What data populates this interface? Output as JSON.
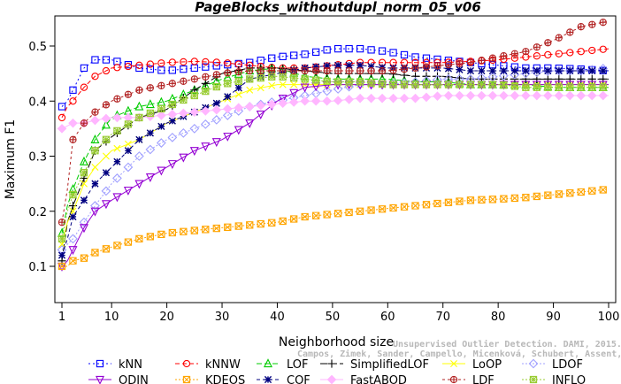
{
  "chart_data": {
    "type": "line",
    "title": "PageBlocks_withoutdupl_norm_05_v06",
    "xlabel": "Neighborhood size",
    "ylabel": "Maximum F1",
    "xlim": [
      0,
      100
    ],
    "ylim": [
      0.08,
      0.55
    ],
    "xticks": [
      1,
      10,
      20,
      30,
      40,
      50,
      60,
      70,
      80,
      90,
      100
    ],
    "yticks": [
      0.1,
      0.2,
      0.3,
      0.4,
      0.5
    ],
    "yticklabels": [
      "0.1",
      "0.2",
      "0.3",
      "0.4",
      "0.5"
    ],
    "grid": false,
    "legend_position": "bottom",
    "watermark": [
      "Campos, Zimek, Sander, Campello, Micenková, Schubert, Assent, Houle",
      "Unsupervised Outlier Detection. DAMI, 2015."
    ],
    "series": [
      {
        "name": "kNN",
        "color": "#0000ff",
        "marker": "square",
        "dash": "2,3",
        "points": [
          [
            1,
            0.39
          ],
          [
            2,
            0.4
          ],
          [
            3,
            0.42
          ],
          [
            5,
            0.46
          ],
          [
            7,
            0.475
          ],
          [
            10,
            0.475
          ],
          [
            15,
            0.46
          ],
          [
            20,
            0.455
          ],
          [
            25,
            0.46
          ],
          [
            30,
            0.465
          ],
          [
            35,
            0.47
          ],
          [
            40,
            0.48
          ],
          [
            45,
            0.485
          ],
          [
            50,
            0.495
          ],
          [
            55,
            0.495
          ],
          [
            60,
            0.49
          ],
          [
            65,
            0.48
          ],
          [
            70,
            0.475
          ],
          [
            75,
            0.47
          ],
          [
            80,
            0.465
          ],
          [
            85,
            0.46
          ],
          [
            90,
            0.46
          ],
          [
            95,
            0.458
          ],
          [
            100,
            0.455
          ]
        ]
      },
      {
        "name": "kNNW",
        "color": "#ff0000",
        "marker": "circle",
        "dash": "5,3",
        "points": [
          [
            1,
            0.37
          ],
          [
            2,
            0.39
          ],
          [
            3,
            0.4
          ],
          [
            5,
            0.425
          ],
          [
            7,
            0.445
          ],
          [
            10,
            0.46
          ],
          [
            15,
            0.465
          ],
          [
            20,
            0.47
          ],
          [
            25,
            0.472
          ],
          [
            30,
            0.47
          ],
          [
            35,
            0.465
          ],
          [
            40,
            0.46
          ],
          [
            45,
            0.46
          ],
          [
            50,
            0.465
          ],
          [
            55,
            0.47
          ],
          [
            60,
            0.47
          ],
          [
            65,
            0.47
          ],
          [
            70,
            0.47
          ],
          [
            75,
            0.472
          ],
          [
            80,
            0.475
          ],
          [
            85,
            0.48
          ],
          [
            90,
            0.485
          ],
          [
            95,
            0.49
          ],
          [
            100,
            0.495
          ]
        ]
      },
      {
        "name": "LOF",
        "color": "#00cc00",
        "marker": "triangle-up",
        "dash": "6,3",
        "points": [
          [
            1,
            0.16
          ],
          [
            2,
            0.21
          ],
          [
            3,
            0.24
          ],
          [
            5,
            0.29
          ],
          [
            7,
            0.33
          ],
          [
            10,
            0.37
          ],
          [
            15,
            0.39
          ],
          [
            20,
            0.4
          ],
          [
            25,
            0.42
          ],
          [
            30,
            0.44
          ],
          [
            35,
            0.455
          ],
          [
            40,
            0.46
          ],
          [
            45,
            0.445
          ],
          [
            50,
            0.44
          ],
          [
            55,
            0.44
          ],
          [
            60,
            0.44
          ],
          [
            65,
            0.435
          ],
          [
            70,
            0.435
          ],
          [
            75,
            0.43
          ],
          [
            80,
            0.43
          ],
          [
            85,
            0.43
          ],
          [
            90,
            0.425
          ],
          [
            95,
            0.425
          ],
          [
            100,
            0.425
          ]
        ]
      },
      {
        "name": "SimplifiedLOF",
        "color": "#000000",
        "marker": "plus",
        "dash": "8,3",
        "points": [
          [
            1,
            0.11
          ],
          [
            2,
            0.18
          ],
          [
            3,
            0.21
          ],
          [
            5,
            0.26
          ],
          [
            7,
            0.31
          ],
          [
            10,
            0.335
          ],
          [
            15,
            0.37
          ],
          [
            20,
            0.385
          ],
          [
            25,
            0.42
          ],
          [
            30,
            0.45
          ],
          [
            35,
            0.46
          ],
          [
            40,
            0.46
          ],
          [
            45,
            0.455
          ],
          [
            50,
            0.45
          ],
          [
            55,
            0.45
          ],
          [
            60,
            0.45
          ],
          [
            65,
            0.445
          ],
          [
            70,
            0.445
          ],
          [
            75,
            0.44
          ],
          [
            80,
            0.44
          ],
          [
            85,
            0.44
          ],
          [
            90,
            0.44
          ],
          [
            95,
            0.44
          ],
          [
            100,
            0.44
          ]
        ]
      },
      {
        "name": "LoOP",
        "color": "#ffff00",
        "marker": "cross",
        "dash": "",
        "points": [
          [
            1,
            0.14
          ],
          [
            2,
            0.18
          ],
          [
            3,
            0.2
          ],
          [
            5,
            0.25
          ],
          [
            7,
            0.28
          ],
          [
            10,
            0.31
          ],
          [
            15,
            0.33
          ],
          [
            20,
            0.36
          ],
          [
            25,
            0.38
          ],
          [
            30,
            0.4
          ],
          [
            35,
            0.42
          ],
          [
            40,
            0.43
          ],
          [
            45,
            0.43
          ],
          [
            50,
            0.43
          ],
          [
            55,
            0.43
          ],
          [
            60,
            0.43
          ],
          [
            65,
            0.43
          ],
          [
            70,
            0.43
          ],
          [
            75,
            0.43
          ],
          [
            80,
            0.43
          ],
          [
            85,
            0.43
          ],
          [
            90,
            0.43
          ],
          [
            95,
            0.43
          ],
          [
            100,
            0.43
          ]
        ]
      },
      {
        "name": "LDOF",
        "color": "#a0a0ff",
        "marker": "diamond",
        "dash": "2,2",
        "points": [
          [
            1,
            0.13
          ],
          [
            2,
            0.14
          ],
          [
            3,
            0.15
          ],
          [
            5,
            0.18
          ],
          [
            7,
            0.21
          ],
          [
            10,
            0.25
          ],
          [
            15,
            0.3
          ],
          [
            20,
            0.33
          ],
          [
            25,
            0.35
          ],
          [
            30,
            0.37
          ],
          [
            35,
            0.39
          ],
          [
            40,
            0.4
          ],
          [
            45,
            0.41
          ],
          [
            50,
            0.42
          ],
          [
            55,
            0.43
          ],
          [
            60,
            0.43
          ],
          [
            65,
            0.435
          ],
          [
            70,
            0.44
          ],
          [
            75,
            0.44
          ],
          [
            80,
            0.445
          ],
          [
            85,
            0.45
          ],
          [
            90,
            0.455
          ],
          [
            95,
            0.455
          ],
          [
            100,
            0.46
          ]
        ]
      },
      {
        "name": "ODIN",
        "color": "#9400d3",
        "marker": "triangle-down",
        "dash": "",
        "points": [
          [
            1,
            0.1
          ],
          [
            2,
            0.11
          ],
          [
            3,
            0.13
          ],
          [
            5,
            0.17
          ],
          [
            7,
            0.2
          ],
          [
            10,
            0.22
          ],
          [
            15,
            0.25
          ],
          [
            20,
            0.28
          ],
          [
            25,
            0.31
          ],
          [
            30,
            0.33
          ],
          [
            35,
            0.36
          ],
          [
            40,
            0.4
          ],
          [
            45,
            0.425
          ],
          [
            50,
            0.43
          ],
          [
            55,
            0.43
          ],
          [
            60,
            0.43
          ],
          [
            65,
            0.43
          ],
          [
            70,
            0.43
          ],
          [
            75,
            0.43
          ],
          [
            80,
            0.43
          ],
          [
            85,
            0.43
          ],
          [
            90,
            0.43
          ],
          [
            95,
            0.43
          ],
          [
            100,
            0.43
          ]
        ]
      },
      {
        "name": "KDEOS",
        "color": "#ffa500",
        "marker": "square-x",
        "dash": "2,2",
        "points": [
          [
            1,
            0.1
          ],
          [
            2,
            0.1
          ],
          [
            3,
            0.11
          ],
          [
            5,
            0.115
          ],
          [
            7,
            0.125
          ],
          [
            10,
            0.135
          ],
          [
            15,
            0.15
          ],
          [
            20,
            0.16
          ],
          [
            25,
            0.165
          ],
          [
            30,
            0.17
          ],
          [
            35,
            0.175
          ],
          [
            40,
            0.18
          ],
          [
            45,
            0.19
          ],
          [
            50,
            0.195
          ],
          [
            55,
            0.2
          ],
          [
            60,
            0.205
          ],
          [
            65,
            0.21
          ],
          [
            70,
            0.215
          ],
          [
            75,
            0.22
          ],
          [
            80,
            0.222
          ],
          [
            85,
            0.225
          ],
          [
            90,
            0.23
          ],
          [
            95,
            0.235
          ],
          [
            100,
            0.24
          ]
        ]
      },
      {
        "name": "COF",
        "color": "#000080",
        "marker": "asterisk",
        "dash": "4,3",
        "points": [
          [
            1,
            0.12
          ],
          [
            2,
            0.15
          ],
          [
            3,
            0.19
          ],
          [
            5,
            0.22
          ],
          [
            7,
            0.25
          ],
          [
            10,
            0.28
          ],
          [
            15,
            0.33
          ],
          [
            20,
            0.36
          ],
          [
            25,
            0.38
          ],
          [
            30,
            0.4
          ],
          [
            35,
            0.44
          ],
          [
            40,
            0.45
          ],
          [
            45,
            0.46
          ],
          [
            50,
            0.465
          ],
          [
            55,
            0.465
          ],
          [
            60,
            0.46
          ],
          [
            65,
            0.46
          ],
          [
            70,
            0.46
          ],
          [
            75,
            0.455
          ],
          [
            80,
            0.455
          ],
          [
            85,
            0.455
          ],
          [
            90,
            0.455
          ],
          [
            95,
            0.455
          ],
          [
            100,
            0.455
          ]
        ]
      },
      {
        "name": "FastABOD",
        "color": "#ffb6ff",
        "marker": "diamond-filled",
        "dash": "",
        "points": [
          [
            1,
            0.35
          ],
          [
            2,
            0.355
          ],
          [
            3,
            0.36
          ],
          [
            5,
            0.36
          ],
          [
            7,
            0.365
          ],
          [
            10,
            0.37
          ],
          [
            15,
            0.37
          ],
          [
            20,
            0.375
          ],
          [
            25,
            0.38
          ],
          [
            30,
            0.385
          ],
          [
            35,
            0.39
          ],
          [
            40,
            0.395
          ],
          [
            45,
            0.4
          ],
          [
            50,
            0.4
          ],
          [
            55,
            0.405
          ],
          [
            60,
            0.405
          ],
          [
            65,
            0.405
          ],
          [
            70,
            0.41
          ],
          [
            75,
            0.41
          ],
          [
            80,
            0.41
          ],
          [
            85,
            0.41
          ],
          [
            90,
            0.41
          ],
          [
            95,
            0.41
          ],
          [
            100,
            0.41
          ]
        ]
      },
      {
        "name": "LDF",
        "color": "#b22222",
        "marker": "circle-plus",
        "dash": "3,3",
        "points": [
          [
            1,
            0.18
          ],
          [
            2,
            0.24
          ],
          [
            3,
            0.33
          ],
          [
            5,
            0.36
          ],
          [
            7,
            0.38
          ],
          [
            10,
            0.4
          ],
          [
            15,
            0.42
          ],
          [
            20,
            0.43
          ],
          [
            25,
            0.44
          ],
          [
            30,
            0.45
          ],
          [
            35,
            0.455
          ],
          [
            40,
            0.455
          ],
          [
            45,
            0.455
          ],
          [
            50,
            0.455
          ],
          [
            55,
            0.455
          ],
          [
            60,
            0.455
          ],
          [
            65,
            0.46
          ],
          [
            70,
            0.465
          ],
          [
            75,
            0.47
          ],
          [
            80,
            0.48
          ],
          [
            85,
            0.49
          ],
          [
            90,
            0.51
          ],
          [
            95,
            0.535
          ],
          [
            100,
            0.545
          ]
        ]
      },
      {
        "name": "INFLO",
        "color": "#99cc33",
        "marker": "square-star",
        "dash": "2,2",
        "points": [
          [
            1,
            0.15
          ],
          [
            2,
            0.2
          ],
          [
            3,
            0.23
          ],
          [
            5,
            0.27
          ],
          [
            7,
            0.31
          ],
          [
            10,
            0.34
          ],
          [
            15,
            0.37
          ],
          [
            20,
            0.39
          ],
          [
            25,
            0.41
          ],
          [
            30,
            0.43
          ],
          [
            35,
            0.44
          ],
          [
            40,
            0.445
          ],
          [
            45,
            0.44
          ],
          [
            50,
            0.435
          ],
          [
            55,
            0.435
          ],
          [
            60,
            0.43
          ],
          [
            65,
            0.43
          ],
          [
            70,
            0.43
          ],
          [
            75,
            0.43
          ],
          [
            80,
            0.43
          ],
          [
            85,
            0.425
          ],
          [
            90,
            0.425
          ],
          [
            95,
            0.425
          ],
          [
            100,
            0.425
          ]
        ]
      }
    ]
  }
}
